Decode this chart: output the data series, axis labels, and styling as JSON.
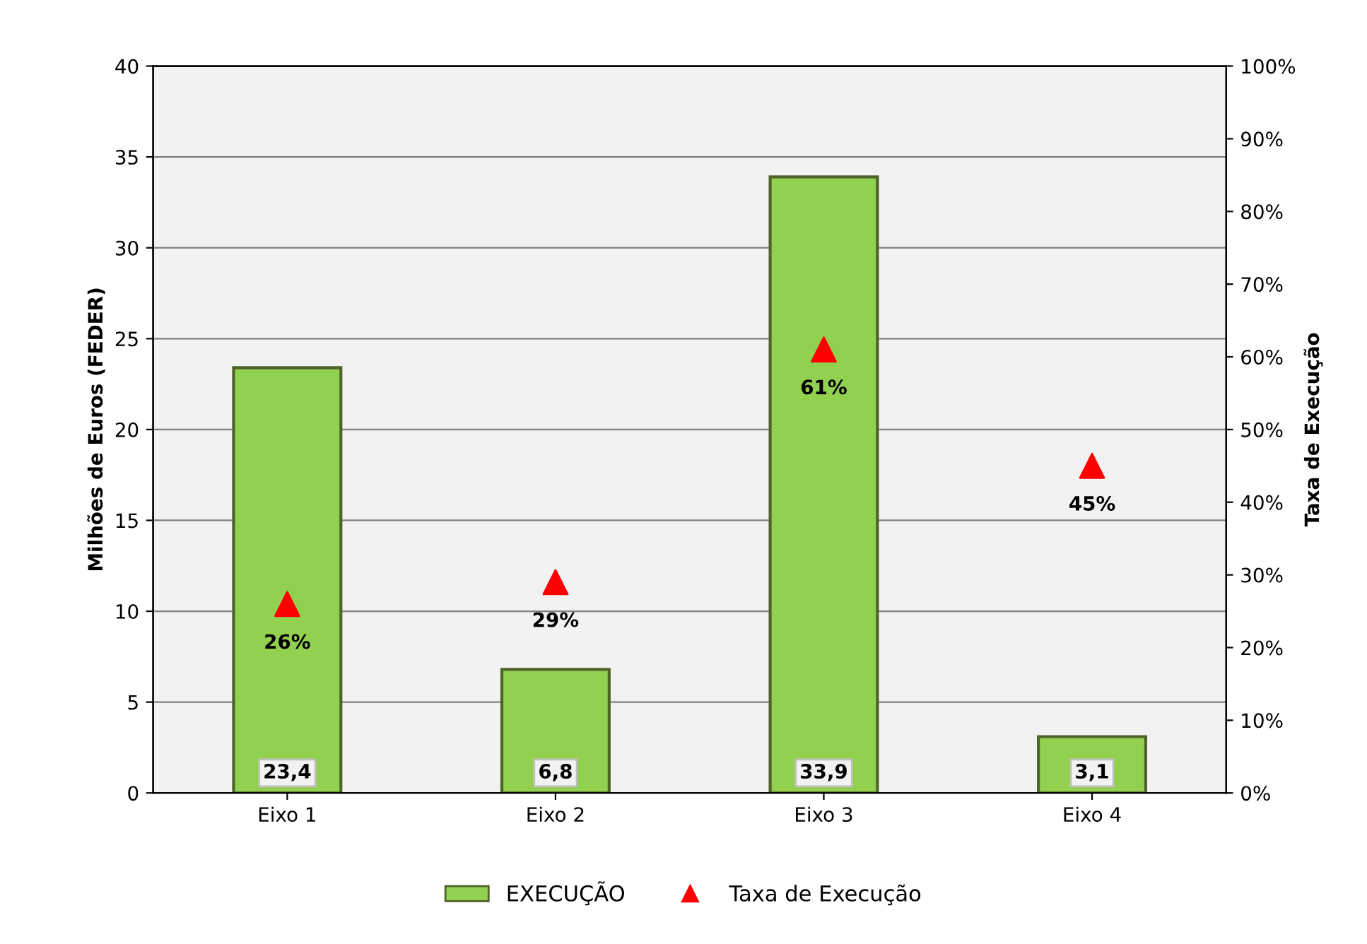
{
  "chart_data": {
    "type": "bar",
    "ylabel": "Milhões de Euros (FEDER)",
    "y2label": "Taxa de Execução",
    "categories": [
      "Eixo 1",
      "Eixo 2",
      "Eixo 3",
      "Eixo 4"
    ],
    "series": [
      {
        "name": "EXECUÇÃO",
        "color": "#92d050",
        "values": [
          23.4,
          6.8,
          33.9,
          3.1
        ],
        "value_labels": [
          "23,4",
          "6,8",
          "33,9",
          "3,1"
        ]
      },
      {
        "name": "Taxa de Execução",
        "type": "scatter",
        "axis": "y2",
        "color": "#ff0000",
        "marker": "triangle",
        "values": [
          26,
          29,
          61,
          45
        ],
        "value_labels": [
          "26%",
          "29%",
          "61%",
          "45%"
        ]
      }
    ],
    "ylim": [
      0,
      40
    ],
    "yticks": [
      0,
      5,
      10,
      15,
      20,
      25,
      30,
      35,
      40
    ],
    "y2lim": [
      0,
      100
    ],
    "y2ticks": [
      {
        "value": 0,
        "label": "0%"
      },
      {
        "value": 10,
        "label": "10%"
      },
      {
        "value": 20,
        "label": "20%"
      },
      {
        "value": 30,
        "label": "30%"
      },
      {
        "value": 40,
        "label": "40%"
      },
      {
        "value": 50,
        "label": "50%"
      },
      {
        "value": 60,
        "label": "60%"
      },
      {
        "value": 70,
        "label": "70%"
      },
      {
        "value": 80,
        "label": "80%"
      },
      {
        "value": 90,
        "label": "90%"
      },
      {
        "value": 100,
        "label": "100%"
      }
    ],
    "grid": "y",
    "legend": "bottom"
  }
}
